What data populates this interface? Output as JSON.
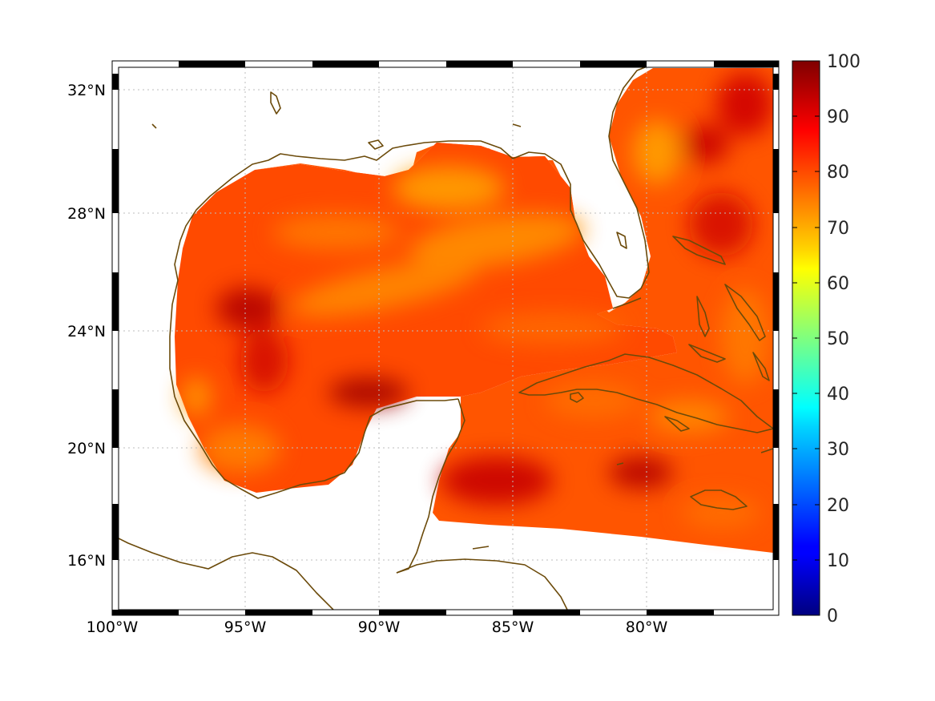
{
  "map": {
    "lon_range": [
      -100,
      -75
    ],
    "lat_range": [
      14,
      33
    ],
    "longitude_labels": [
      "100°W",
      "95°W",
      "90°W",
      "85°W",
      "80°W"
    ],
    "latitude_labels": [
      "32°N",
      "28°N",
      "24°N",
      "20°N",
      "16°N"
    ],
    "gridlines": true,
    "coastline_color": "#6b4a0a",
    "colormap": "jet",
    "field_dominant_range": [
      75,
      95
    ]
  },
  "colorbar": {
    "ticks": [
      "100",
      "90",
      "80",
      "70",
      "60",
      "50",
      "40",
      "30",
      "20",
      "10",
      "0"
    ],
    "min": 0,
    "max": 100,
    "placement": "right"
  }
}
